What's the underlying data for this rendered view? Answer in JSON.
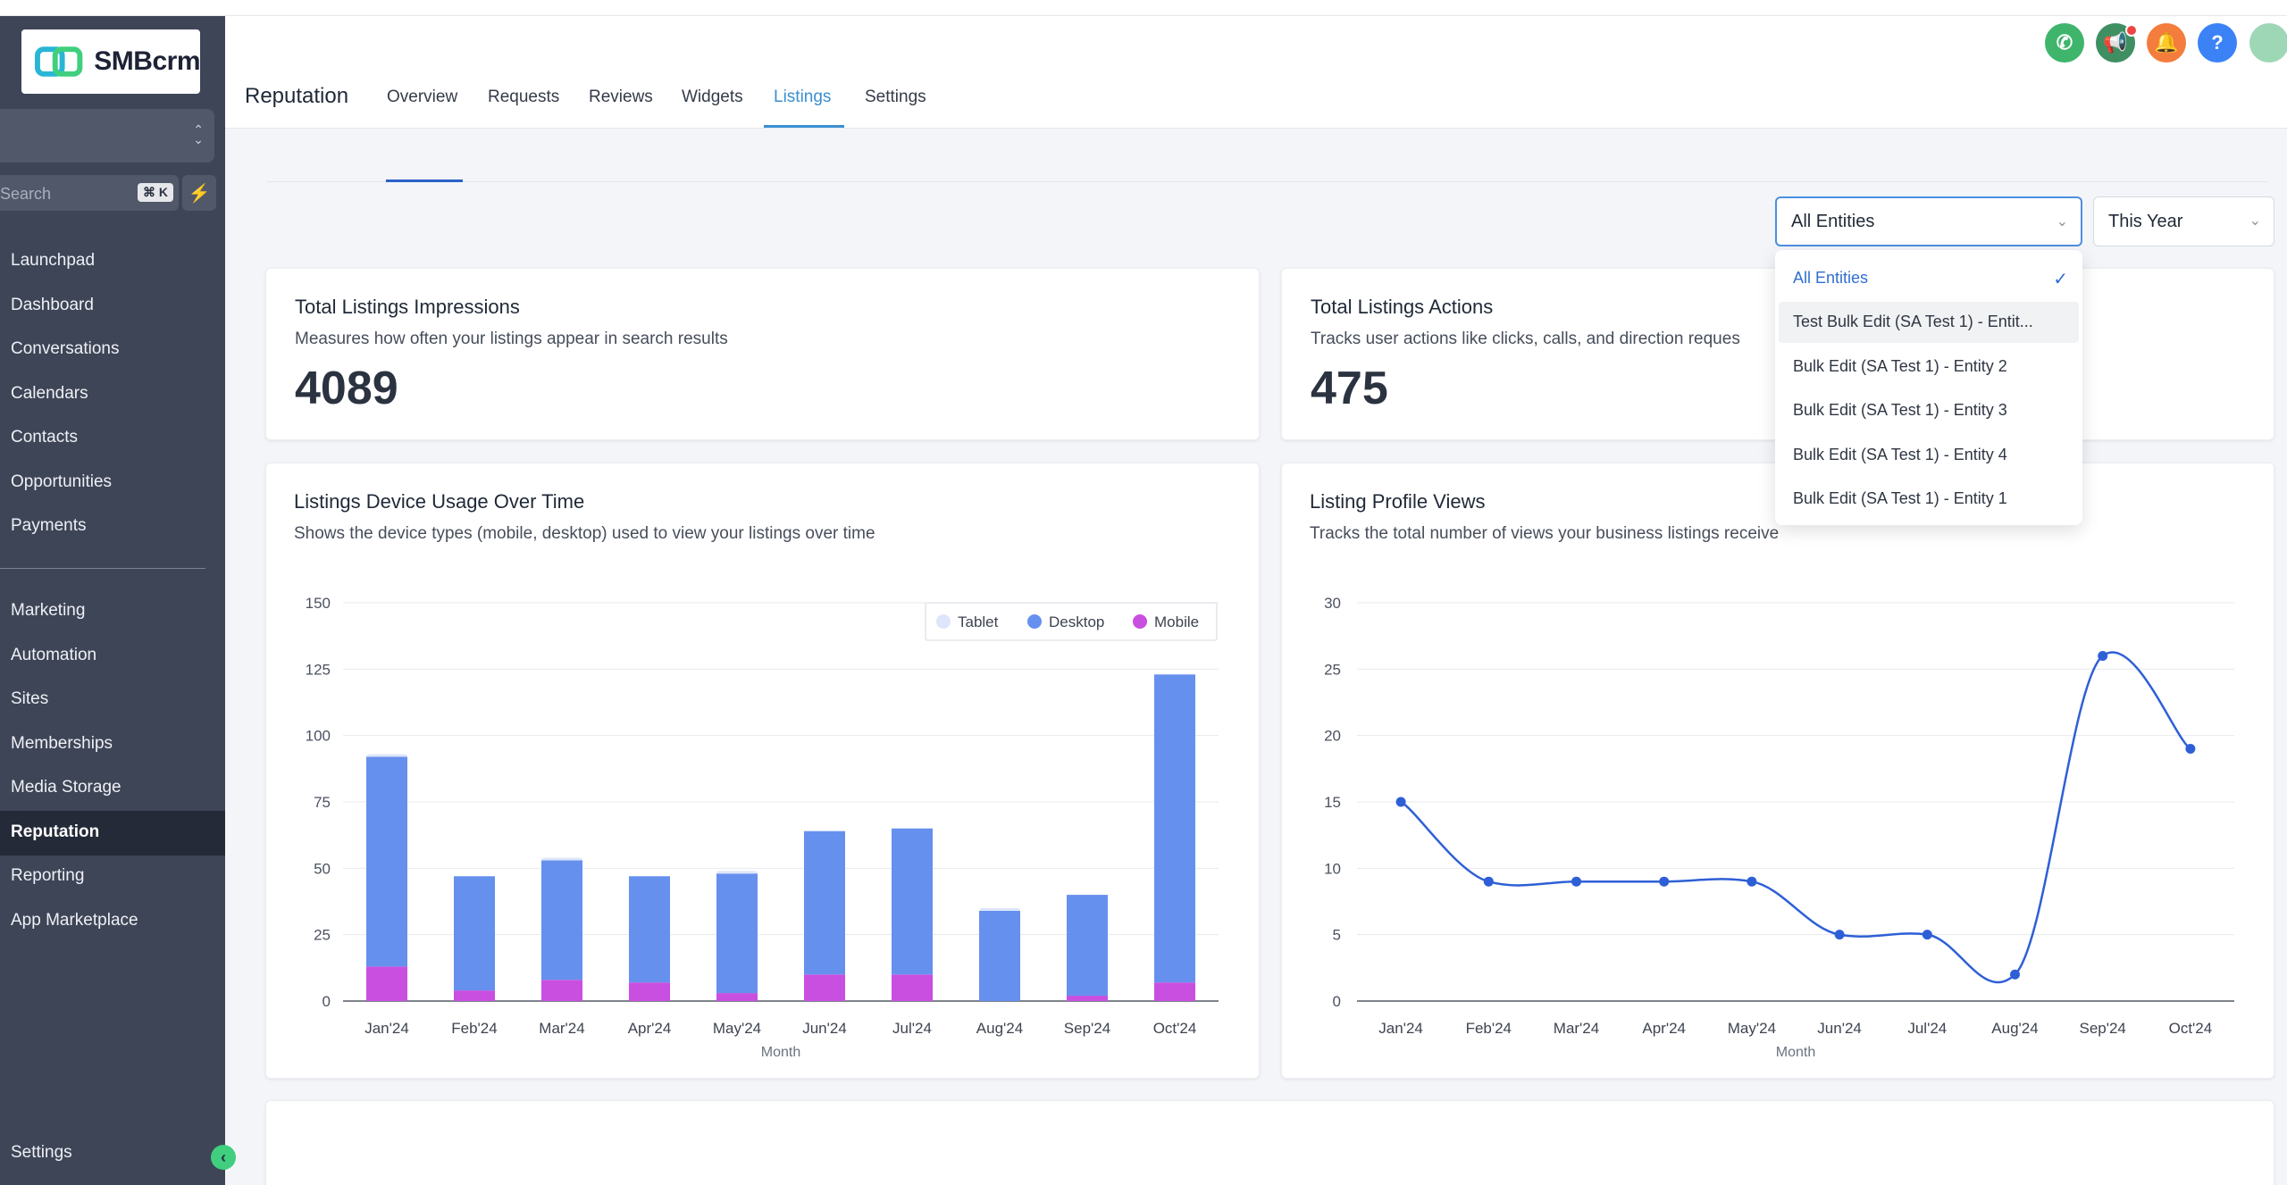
{
  "brand": {
    "logo_text": "SMBcrm",
    "logo_icon": "smbcrm-logo-icon"
  },
  "sidebar": {
    "search_placeholder": "Search",
    "search_shortcut": "⌘ K",
    "items_top": [
      "Launchpad",
      "Dashboard",
      "Conversations",
      "Calendars",
      "Contacts",
      "Opportunities",
      "Payments"
    ],
    "items_bottom": [
      "Marketing",
      "Automation",
      "Sites",
      "Memberships",
      "Media Storage",
      "Reputation",
      "Reporting",
      "App Marketplace"
    ],
    "active_item": "Reputation",
    "settings_label": "Settings"
  },
  "header": {
    "title": "Reputation",
    "tabs": [
      "Overview",
      "Requests",
      "Reviews",
      "Widgets",
      "Listings",
      "Settings"
    ],
    "active_tab": "Listings",
    "icons": [
      "phone-icon",
      "megaphone-icon",
      "bell-icon",
      "help-icon",
      "avatar"
    ]
  },
  "filters": {
    "entity_value": "All Entities",
    "period_value": "This Year"
  },
  "entity_dropdown": {
    "options": [
      "All Entities",
      "Test Bulk Edit (SA Test 1) - Entit...",
      "Bulk Edit (SA Test 1) - Entity 2",
      "Bulk Edit (SA Test 1) - Entity 3",
      "Bulk Edit (SA Test 1) - Entity 4",
      "Bulk Edit (SA Test 1) - Entity 1"
    ],
    "selected": "All Entities"
  },
  "kpis": {
    "impressions": {
      "title": "Total Listings Impressions",
      "subtitle": "Measures how often your listings appear in search results",
      "value": "4089"
    },
    "actions": {
      "title": "Total Listings Actions",
      "subtitle": "Tracks user actions like clicks, calls, and direction reques",
      "value": "475"
    }
  },
  "device_card": {
    "title": "Listings Device Usage Over Time",
    "subtitle": "Shows the device types (mobile, desktop) used to view your listings over time"
  },
  "views_card": {
    "title": "Listing Profile Views",
    "subtitle": "Tracks the total number of views your business listings receive"
  },
  "colors": {
    "accent": "#3a8fd2",
    "sidebar": "#3e4557",
    "desktop": "#6690ee",
    "mobile": "#c94fe0",
    "tablet": "#dde6fa",
    "line": "#2e5fd6"
  },
  "chart_data": [
    {
      "type": "bar",
      "stacked": true,
      "categories": [
        "Jan'24",
        "Feb'24",
        "Mar'24",
        "Apr'24",
        "May'24",
        "Jun'24",
        "Jul'24",
        "Aug'24",
        "Sep'24",
        "Oct'24"
      ],
      "series": [
        {
          "name": "Tablet",
          "color": "#dde6fa",
          "values": [
            1,
            0,
            1,
            0,
            1,
            0,
            0,
            1,
            0,
            0
          ]
        },
        {
          "name": "Desktop",
          "color": "#6690ee",
          "values": [
            79,
            43,
            45,
            40,
            45,
            54,
            55,
            34,
            38,
            116
          ]
        },
        {
          "name": "Mobile",
          "color": "#c94fe0",
          "values": [
            13,
            4,
            8,
            7,
            3,
            10,
            10,
            0,
            2,
            7
          ]
        }
      ],
      "xlabel": "Month",
      "ylabel": "",
      "ylim": [
        0,
        150
      ],
      "yticks": [
        0,
        25,
        50,
        75,
        100,
        125,
        150
      ],
      "legend": "top-right",
      "grid": true
    },
    {
      "type": "line",
      "categories": [
        "Jan'24",
        "Feb'24",
        "Mar'24",
        "Apr'24",
        "May'24",
        "Jun'24",
        "Jul'24",
        "Aug'24",
        "Sep'24",
        "Oct'24"
      ],
      "series": [
        {
          "color": "#2e5fd6",
          "values": [
            15,
            9,
            9,
            9,
            9,
            5,
            5,
            2,
            26,
            19
          ]
        }
      ],
      "xlabel": "Month",
      "ylabel": "",
      "ylim": [
        0,
        30
      ],
      "yticks": [
        0,
        5,
        10,
        15,
        20,
        25,
        30
      ],
      "grid": true
    }
  ]
}
